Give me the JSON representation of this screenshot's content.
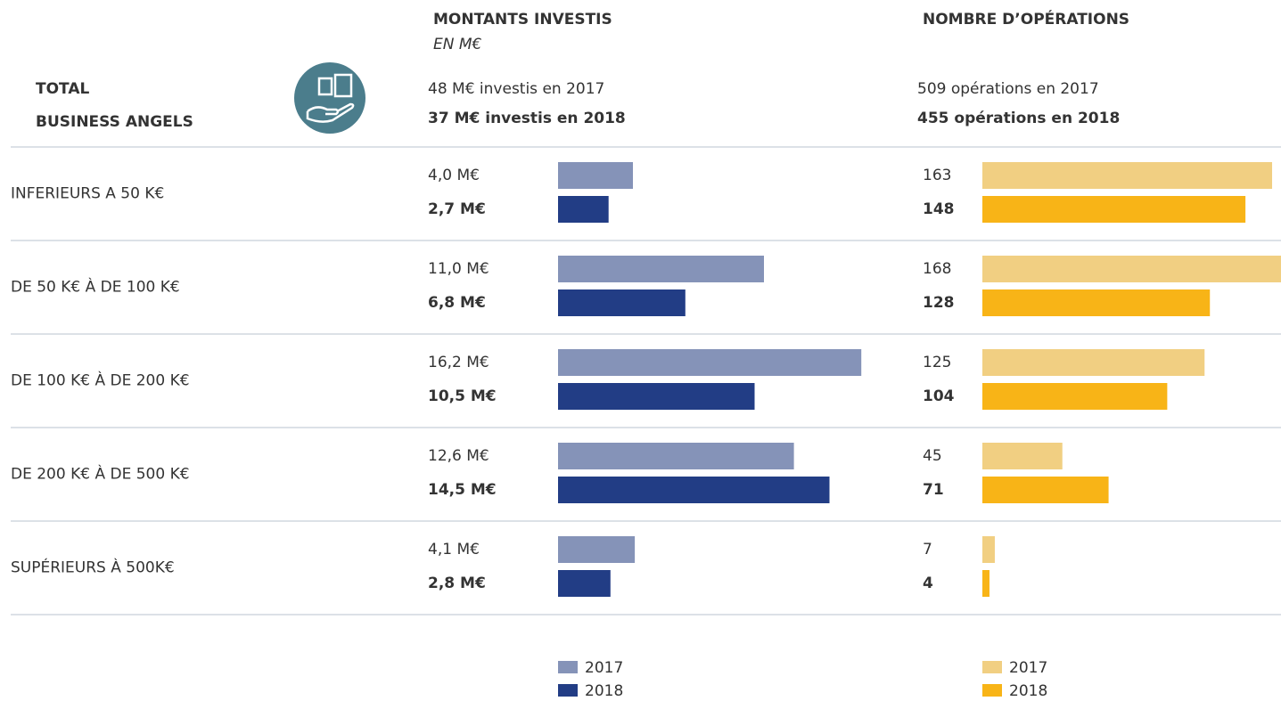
{
  "header": {
    "title_lines": [
      "TOTAL",
      "BUSINESS ANGELS"
    ]
  },
  "chart_data": [
    {
      "type": "barh",
      "title": "MONTANTS INVESTIS",
      "subtitle": "EN M€",
      "summary": [
        "48 M€ investis en 2017",
        "37 M€ investis en 2018"
      ],
      "categories": [
        "INFERIEURS A 50 K€",
        "DE 50 K€ À DE 100 K€",
        "DE 100 K€ À DE 200 K€",
        "DE 200 K€ À DE 500 K€",
        "SUPÉRIEURS À 500K€"
      ],
      "xlim": [
        0,
        20
      ],
      "series": [
        {
          "name": "2017",
          "color": "#8593b8",
          "values": [
            4.0,
            11.0,
            16.2,
            12.6,
            4.1
          ],
          "value_labels": [
            "4,0 M€",
            "11,0 M€",
            "16,2 M€",
            "12,6 M€",
            "4,1 M€"
          ]
        },
        {
          "name": "2018",
          "color": "#223d85",
          "values": [
            2.7,
            6.8,
            10.5,
            14.5,
            2.8
          ],
          "value_labels": [
            "2,7 M€",
            "6,8 M€",
            "10,5 M€",
            "14,5 M€",
            "2,8 M€"
          ]
        }
      ]
    },
    {
      "type": "barh",
      "title": "NOMBRE D’OPÉRATIONS",
      "summary": [
        "509 opérations en 2017",
        "455 opérations en 2018"
      ],
      "xlim": [
        0,
        168
      ],
      "series": [
        {
          "name": "2017",
          "color": "#f1cf82",
          "values": [
            163,
            168,
            125,
            45,
            7
          ]
        },
        {
          "name": "2018",
          "color": "#f8b417",
          "values": [
            148,
            128,
            104,
            71,
            4
          ]
        }
      ]
    }
  ]
}
